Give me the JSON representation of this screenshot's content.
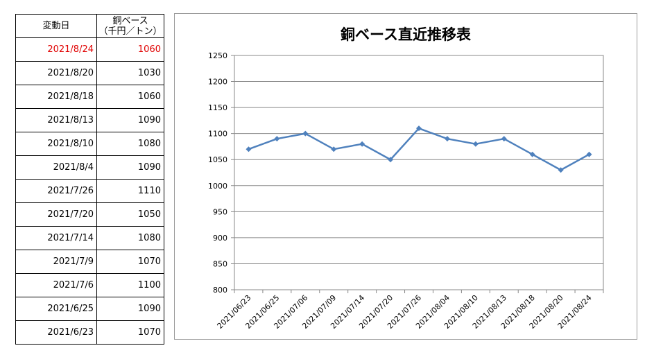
{
  "table": {
    "header_date": "変動日",
    "header_value_line1": "銅ベース",
    "header_value_line2": "（千円／トン）",
    "highlight_color": "#e00000",
    "rows": [
      {
        "date": "2021/8/24",
        "value": "1060",
        "highlight": true
      },
      {
        "date": "2021/8/20",
        "value": "1030"
      },
      {
        "date": "2021/8/18",
        "value": "1060"
      },
      {
        "date": "2021/8/13",
        "value": "1090"
      },
      {
        "date": "2021/8/10",
        "value": "1080"
      },
      {
        "date": "2021/8/4",
        "value": "1090"
      },
      {
        "date": "2021/7/26",
        "value": "1110"
      },
      {
        "date": "2021/7/20",
        "value": "1050"
      },
      {
        "date": "2021/7/14",
        "value": "1080"
      },
      {
        "date": "2021/7/9",
        "value": "1070"
      },
      {
        "date": "2021/7/6",
        "value": "1100"
      },
      {
        "date": "2021/6/25",
        "value": "1090"
      },
      {
        "date": "2021/6/23",
        "value": "1070"
      }
    ]
  },
  "chart_data": {
    "type": "line",
    "title": "銅ベース直近推移表",
    "categories": [
      "2021/06/23",
      "2021/06/25",
      "2021/07/06",
      "2021/07/09",
      "2021/07/14",
      "2021/07/20",
      "2021/07/26",
      "2021/08/04",
      "2021/08/10",
      "2021/08/13",
      "2021/08/18",
      "2021/08/20",
      "2021/08/24"
    ],
    "series": [
      {
        "values": [
          1070,
          1090,
          1100,
          1070,
          1080,
          1050,
          1110,
          1090,
          1080,
          1090,
          1060,
          1030,
          1060
        ],
        "color": "#4f81bd"
      }
    ],
    "ylim": [
      800,
      1250
    ],
    "yticks": [
      "800",
      "850",
      "900",
      "950",
      "1000",
      "1050",
      "1100",
      "1150",
      "1200",
      "1250"
    ],
    "grid": true,
    "legend": "none"
  }
}
